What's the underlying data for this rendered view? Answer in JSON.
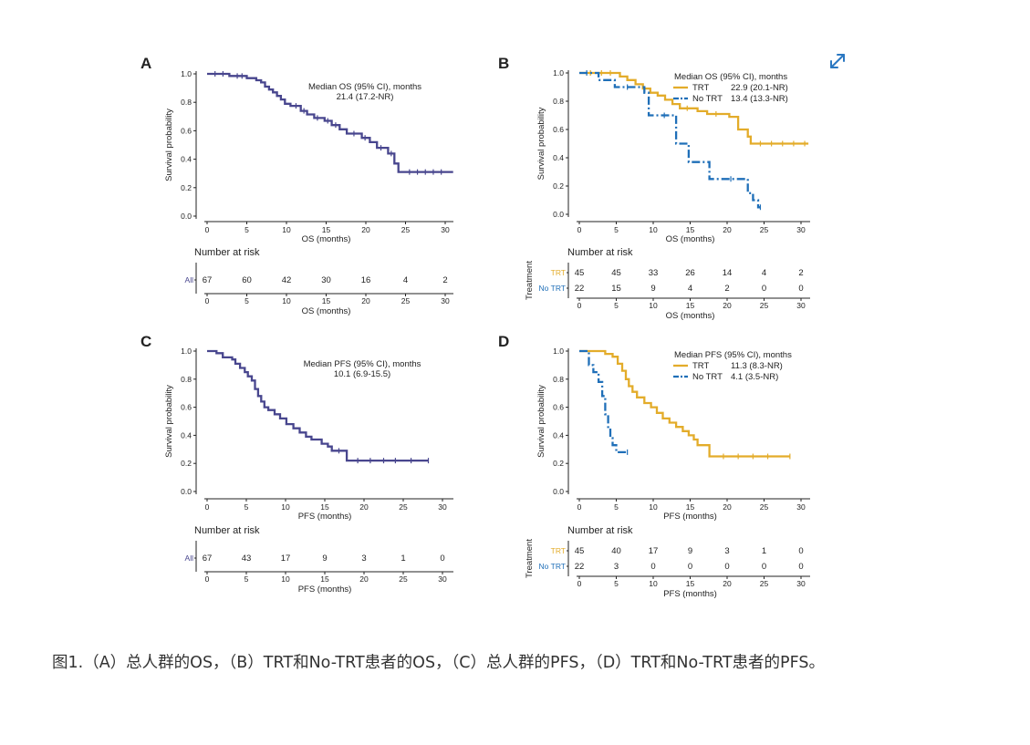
{
  "colors": {
    "primary": "#48468e",
    "trt": "#e3ac2a",
    "notrt": "#1f6fb8",
    "text": "#222222",
    "caption": "#333333",
    "icon": "#2b78c2"
  },
  "icons": {
    "expand": "expand-arrows-icon"
  },
  "caption": "图1.（A）总人群的OS，（B）TRT和No-TRT患者的OS，（C）总人群的PFS，（D）TRT和No-TRT患者的PFS。",
  "chart_data": [
    {
      "panel": "A",
      "type": "line",
      "xlabel": "OS (months)",
      "ylabel": "Survival probability",
      "xlim": [
        0,
        31
      ],
      "ylim": [
        0,
        1
      ],
      "xticks": [
        "0",
        "5",
        "10",
        "15",
        "20",
        "25",
        "30"
      ],
      "yticks": [
        "0.0",
        "0.2",
        "0.4",
        "0.6",
        "0.8",
        "1.0"
      ],
      "legend_lines": [
        "Median OS (95% CI), months",
        "21.4 (17.2-NR)"
      ],
      "series": [
        {
          "name": "All",
          "color": "#48468e",
          "dashed": false,
          "steps": [
            [
              0,
              1.0
            ],
            [
              2.8,
              0.985
            ],
            [
              5,
              0.97
            ],
            [
              6.2,
              0.955
            ],
            [
              6.8,
              0.94
            ],
            [
              7.3,
              0.91
            ],
            [
              7.8,
              0.89
            ],
            [
              8.3,
              0.87
            ],
            [
              8.8,
              0.845
            ],
            [
              9.3,
              0.82
            ],
            [
              9.8,
              0.79
            ],
            [
              10.5,
              0.775
            ],
            [
              11.8,
              0.74
            ],
            [
              12.6,
              0.715
            ],
            [
              13.5,
              0.69
            ],
            [
              14.8,
              0.67
            ],
            [
              15.7,
              0.64
            ],
            [
              16.7,
              0.61
            ],
            [
              17.6,
              0.58
            ],
            [
              19.5,
              0.55
            ],
            [
              20.5,
              0.52
            ],
            [
              21.4,
              0.48
            ],
            [
              22.8,
              0.44
            ],
            [
              23.6,
              0.37
            ],
            [
              24.1,
              0.31
            ],
            [
              31,
              0.31
            ]
          ],
          "censor": [
            [
              1,
              1.0
            ],
            [
              2,
              1.0
            ],
            [
              3.8,
              0.985
            ],
            [
              4.4,
              0.985
            ],
            [
              11.2,
              0.775
            ],
            [
              12.2,
              0.74
            ],
            [
              13.9,
              0.69
            ],
            [
              15.2,
              0.67
            ],
            [
              16.2,
              0.64
            ],
            [
              18.5,
              0.58
            ],
            [
              19.9,
              0.55
            ],
            [
              21.9,
              0.48
            ],
            [
              23.2,
              0.44
            ],
            [
              25.5,
              0.31
            ],
            [
              26.5,
              0.31
            ],
            [
              27.5,
              0.31
            ],
            [
              28.5,
              0.31
            ],
            [
              29.5,
              0.31
            ]
          ]
        }
      ],
      "risk_table": {
        "title": "Number at risk",
        "xlabel": "OS (months)",
        "ylabel": "",
        "ticks": [
          "0",
          "5",
          "10",
          "15",
          "20",
          "25",
          "30"
        ],
        "rows": [
          {
            "label": "All",
            "color": "#48468e",
            "values": [
              "67",
              "60",
              "42",
              "30",
              "16",
              "4",
              "2"
            ]
          }
        ]
      }
    },
    {
      "panel": "B",
      "type": "line",
      "xlabel": "OS (months)",
      "ylabel": "Survival probability",
      "xlim": [
        0,
        31
      ],
      "ylim": [
        0,
        1
      ],
      "xticks": [
        "0",
        "5",
        "10",
        "15",
        "20",
        "25",
        "30"
      ],
      "yticks": [
        "0.0",
        "0.2",
        "0.4",
        "0.6",
        "0.8",
        "1.0"
      ],
      "legend_title": "Median OS (95% CI), months",
      "series": [
        {
          "name": "TRT",
          "legend_label": "TRT",
          "legend_value": "22.9 (20.1-NR)",
          "color": "#e3ac2a",
          "dashed": false,
          "steps": [
            [
              0,
              1.0
            ],
            [
              5.5,
              0.975
            ],
            [
              6.5,
              0.95
            ],
            [
              7.6,
              0.92
            ],
            [
              8.6,
              0.89
            ],
            [
              9.6,
              0.86
            ],
            [
              10.6,
              0.84
            ],
            [
              11.6,
              0.81
            ],
            [
              12.6,
              0.78
            ],
            [
              13.6,
              0.75
            ],
            [
              16,
              0.73
            ],
            [
              17.3,
              0.71
            ],
            [
              20.3,
              0.69
            ],
            [
              21.5,
              0.6
            ],
            [
              22.8,
              0.55
            ],
            [
              23.2,
              0.5
            ],
            [
              31,
              0.5
            ]
          ],
          "censor": [
            [
              1.5,
              1.0
            ],
            [
              3,
              1.0
            ],
            [
              4.2,
              1.0
            ],
            [
              14.6,
              0.75
            ],
            [
              18.5,
              0.71
            ],
            [
              24.5,
              0.5
            ],
            [
              26,
              0.5
            ],
            [
              27.5,
              0.5
            ],
            [
              29,
              0.5
            ],
            [
              30.5,
              0.5
            ]
          ]
        },
        {
          "name": "No TRT",
          "legend_label": "No TRT",
          "legend_value": "13.4 (13.3-NR)",
          "color": "#1f6fb8",
          "dashed": true,
          "steps": [
            [
              0,
              1.0
            ],
            [
              2.6,
              0.95
            ],
            [
              4.8,
              0.9
            ],
            [
              8.8,
              0.86
            ],
            [
              9.4,
              0.7
            ],
            [
              13.1,
              0.5
            ],
            [
              14.8,
              0.37
            ],
            [
              17.6,
              0.25
            ],
            [
              22.8,
              0.15
            ],
            [
              23.5,
              0.1
            ],
            [
              24.2,
              0.05
            ],
            [
              24.5,
              0.05
            ]
          ],
          "censor": [
            [
              1,
              1.0
            ],
            [
              6.5,
              0.9
            ],
            [
              11.5,
              0.7
            ],
            [
              20.5,
              0.25
            ],
            [
              24.5,
              0.05
            ]
          ]
        }
      ],
      "risk_table": {
        "title": "Number at risk",
        "xlabel": "OS (months)",
        "ylabel": "Treatment",
        "ticks": [
          "0",
          "5",
          "10",
          "15",
          "20",
          "25",
          "30"
        ],
        "rows": [
          {
            "label": "TRT",
            "color": "#e3ac2a",
            "values": [
              "45",
              "45",
              "33",
              "26",
              "14",
              "4",
              "2"
            ]
          },
          {
            "label": "No TRT",
            "color": "#1f6fb8",
            "values": [
              "22",
              "15",
              "9",
              "4",
              "2",
              "0",
              "0"
            ]
          }
        ]
      }
    },
    {
      "panel": "C",
      "type": "line",
      "xlabel": "PFS (months)",
      "ylabel": "Survival probability",
      "xlim": [
        0,
        31
      ],
      "ylim": [
        0,
        1
      ],
      "xticks": [
        "0",
        "5",
        "10",
        "15",
        "20",
        "25",
        "30"
      ],
      "yticks": [
        "0.0",
        "0.2",
        "0.4",
        "0.6",
        "0.8",
        "1.0"
      ],
      "legend_lines": [
        "Median PFS (95% CI), months",
        "10.1 (6.9-15.5)"
      ],
      "series": [
        {
          "name": "All",
          "color": "#48468e",
          "dashed": false,
          "steps": [
            [
              0,
              1.0
            ],
            [
              1.2,
              0.985
            ],
            [
              2,
              0.955
            ],
            [
              3.2,
              0.94
            ],
            [
              3.6,
              0.91
            ],
            [
              4.2,
              0.88
            ],
            [
              4.8,
              0.85
            ],
            [
              5.2,
              0.82
            ],
            [
              5.7,
              0.79
            ],
            [
              6.1,
              0.73
            ],
            [
              6.5,
              0.68
            ],
            [
              6.9,
              0.64
            ],
            [
              7.3,
              0.6
            ],
            [
              7.8,
              0.58
            ],
            [
              8.6,
              0.55
            ],
            [
              9.3,
              0.52
            ],
            [
              10.1,
              0.48
            ],
            [
              11,
              0.45
            ],
            [
              11.8,
              0.42
            ],
            [
              12.6,
              0.39
            ],
            [
              13.3,
              0.37
            ],
            [
              14.6,
              0.34
            ],
            [
              15.4,
              0.32
            ],
            [
              15.9,
              0.29
            ],
            [
              17.8,
              0.22
            ],
            [
              28.2,
              0.22
            ]
          ],
          "censor": [
            [
              16.8,
              0.29
            ],
            [
              19.2,
              0.22
            ],
            [
              20.8,
              0.22
            ],
            [
              22.5,
              0.22
            ],
            [
              24,
              0.22
            ],
            [
              26,
              0.22
            ],
            [
              28.2,
              0.22
            ]
          ]
        }
      ],
      "risk_table": {
        "title": "Number at risk",
        "xlabel": "PFS (months)",
        "ylabel": "",
        "ticks": [
          "0",
          "5",
          "10",
          "15",
          "20",
          "25",
          "30"
        ],
        "rows": [
          {
            "label": "All",
            "color": "#48468e",
            "values": [
              "67",
              "43",
              "17",
              "9",
              "3",
              "1",
              "0"
            ]
          }
        ]
      }
    },
    {
      "panel": "D",
      "type": "line",
      "xlabel": "PFS (months)",
      "ylabel": "Survival probability",
      "xlim": [
        0,
        31
      ],
      "ylim": [
        0,
        1
      ],
      "xticks": [
        "0",
        "5",
        "10",
        "15",
        "20",
        "25",
        "30"
      ],
      "yticks": [
        "0.0",
        "0.2",
        "0.4",
        "0.6",
        "0.8",
        "1.0"
      ],
      "legend_title": "Median PFS (95% CI), months",
      "series": [
        {
          "name": "TRT",
          "legend_label": "TRT",
          "legend_value": "11.3 (8.3-NR)",
          "color": "#e3ac2a",
          "dashed": false,
          "steps": [
            [
              0,
              1.0
            ],
            [
              3.5,
              0.98
            ],
            [
              4.5,
              0.96
            ],
            [
              5.2,
              0.91
            ],
            [
              5.8,
              0.86
            ],
            [
              6.3,
              0.8
            ],
            [
              6.7,
              0.75
            ],
            [
              7.2,
              0.71
            ],
            [
              7.8,
              0.67
            ],
            [
              8.8,
              0.63
            ],
            [
              9.7,
              0.6
            ],
            [
              10.5,
              0.56
            ],
            [
              11.3,
              0.52
            ],
            [
              12.2,
              0.49
            ],
            [
              13.1,
              0.46
            ],
            [
              14,
              0.43
            ],
            [
              14.8,
              0.4
            ],
            [
              15.5,
              0.37
            ],
            [
              16,
              0.33
            ],
            [
              17.6,
              0.25
            ],
            [
              28.5,
              0.25
            ]
          ],
          "censor": [
            [
              19.5,
              0.25
            ],
            [
              21.5,
              0.25
            ],
            [
              23.5,
              0.25
            ],
            [
              25.5,
              0.25
            ],
            [
              28.5,
              0.25
            ]
          ]
        },
        {
          "name": "No TRT",
          "legend_label": "No TRT",
          "legend_value": "4.1 (3.5-NR)",
          "color": "#1f6fb8",
          "dashed": true,
          "steps": [
            [
              0,
              1.0
            ],
            [
              1.3,
              0.9
            ],
            [
              1.9,
              0.85
            ],
            [
              2.6,
              0.78
            ],
            [
              3.1,
              0.68
            ],
            [
              3.5,
              0.55
            ],
            [
              3.9,
              0.45
            ],
            [
              4.2,
              0.38
            ],
            [
              4.5,
              0.33
            ],
            [
              5,
              0.28
            ],
            [
              6.5,
              0.28
            ]
          ],
          "censor": [
            [
              6.5,
              0.28
            ]
          ]
        }
      ],
      "risk_table": {
        "title": "Number at risk",
        "xlabel": "PFS (months)",
        "ylabel": "Treatment",
        "ticks": [
          "0",
          "5",
          "10",
          "15",
          "20",
          "25",
          "30"
        ],
        "rows": [
          {
            "label": "TRT",
            "color": "#e3ac2a",
            "values": [
              "45",
              "40",
              "17",
              "9",
              "3",
              "1",
              "0"
            ]
          },
          {
            "label": "No TRT",
            "color": "#1f6fb8",
            "values": [
              "22",
              "3",
              "0",
              "0",
              "0",
              "0",
              "0"
            ]
          }
        ]
      }
    }
  ]
}
